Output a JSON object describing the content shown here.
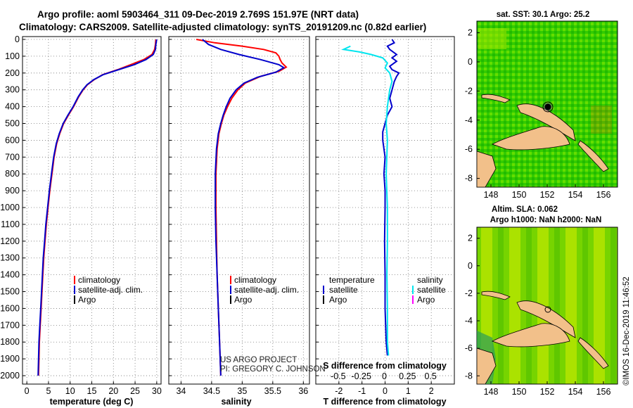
{
  "header": {
    "title_line1": "Argo profile: aoml 5903464_311 09-Dec-2019 2.769S 151.97E (NRT data)",
    "title_line2": "Climatology: CARS2009. Satellite-adjusted climatology: synTS_20191209.nc (0.82d earlier)"
  },
  "colors": {
    "climatology": "#ff0000",
    "satellite": "#0000cc",
    "argo": "#000000",
    "sal_satellite": "#00e5ee",
    "sal_argo": "#ff00ff"
  },
  "depth_ticks": [
    "0",
    "100",
    "200",
    "300",
    "400",
    "500",
    "600",
    "700",
    "800",
    "900",
    "1000",
    "1100",
    "1200",
    "1300",
    "1400",
    "1500",
    "1600",
    "1700",
    "1800",
    "1900",
    "2000"
  ],
  "legend": {
    "climatology": "climatology",
    "satellite_adj": "satellite-adj. clim.",
    "argo": "Argo",
    "temperature": "temperature",
    "salinity": "salinity",
    "satellite": "satellite"
  },
  "credits": {
    "line1": "US ARGO PROJECT",
    "line2": "PI: GREGORY C. JOHNSON"
  },
  "maps": {
    "sst_title": "sat. SST: 30.1 Argo: 25.2",
    "sla_title_line1": "Altim. SLA: 0.062",
    "sla_title_line2": "Argo h1000: NaN h2000: NaN",
    "lon_ticks": [
      "148",
      "150",
      "152",
      "154",
      "156"
    ],
    "lat_ticks": [
      "2",
      "0",
      "-2",
      "-4",
      "-6",
      "-8"
    ],
    "float_position": {
      "lon": 151.97,
      "lat": -2.769
    }
  },
  "imos_stamp": "©IMOS 16-Dec-2019 11:46:52",
  "chart_data": [
    {
      "type": "line",
      "panel": "temperature",
      "xlabel": "temperature (deg C)",
      "ylabel": "depth",
      "xlim": [
        -1,
        31
      ],
      "ylim": [
        2050,
        0
      ],
      "xticks": [
        "0",
        "5",
        "10",
        "15",
        "20",
        "25",
        "30"
      ],
      "series": [
        {
          "name": "climatology",
          "points": [
            [
              29.8,
              0
            ],
            [
              29.7,
              30
            ],
            [
              29.5,
              60
            ],
            [
              28.9,
              90
            ],
            [
              27.0,
              120
            ],
            [
              24.0,
              150
            ],
            [
              21.0,
              180
            ],
            [
              17.5,
              210
            ],
            [
              15.5,
              240
            ],
            [
              14.0,
              270
            ],
            [
              13.0,
              300
            ],
            [
              12.0,
              340
            ],
            [
              10.8,
              400
            ],
            [
              9.6,
              450
            ],
            [
              8.5,
              500
            ],
            [
              7.6,
              560
            ],
            [
              6.9,
              620
            ],
            [
              6.3,
              700
            ],
            [
              5.8,
              800
            ],
            [
              5.3,
              900
            ],
            [
              4.9,
              1000
            ],
            [
              4.5,
              1100
            ],
            [
              4.2,
              1200
            ],
            [
              3.9,
              1300
            ],
            [
              3.7,
              1400
            ],
            [
              3.5,
              1500
            ],
            [
              3.3,
              1600
            ],
            [
              3.1,
              1700
            ],
            [
              2.9,
              1800
            ],
            [
              2.8,
              1900
            ],
            [
              2.7,
              2000
            ]
          ]
        },
        {
          "name": "satellite-adj. clim.",
          "points": [
            [
              30.0,
              0
            ],
            [
              29.8,
              30
            ],
            [
              29.7,
              60
            ],
            [
              29.2,
              90
            ],
            [
              27.5,
              120
            ],
            [
              24.8,
              150
            ],
            [
              21.2,
              180
            ],
            [
              17.6,
              210
            ],
            [
              15.4,
              240
            ],
            [
              13.9,
              270
            ],
            [
              12.9,
              300
            ],
            [
              11.9,
              340
            ],
            [
              10.7,
              400
            ],
            [
              9.5,
              450
            ],
            [
              8.4,
              500
            ],
            [
              7.5,
              560
            ],
            [
              6.8,
              620
            ],
            [
              6.2,
              700
            ],
            [
              5.7,
              800
            ],
            [
              5.2,
              900
            ],
            [
              4.8,
              1000
            ],
            [
              4.4,
              1100
            ],
            [
              4.1,
              1200
            ],
            [
              3.8,
              1300
            ],
            [
              3.6,
              1400
            ],
            [
              3.4,
              1500
            ],
            [
              3.2,
              1600
            ],
            [
              3.0,
              1700
            ],
            [
              2.8,
              1800
            ],
            [
              2.7,
              1900
            ],
            [
              2.6,
              2000
            ]
          ]
        }
      ]
    },
    {
      "type": "line",
      "panel": "salinity",
      "xlabel": "salinity",
      "ylabel": "depth",
      "xlim": [
        33.8,
        36.1
      ],
      "ylim": [
        2050,
        0
      ],
      "xticks": [
        "34",
        "34.5",
        "35",
        "35.5",
        "36"
      ],
      "series": [
        {
          "name": "climatology",
          "points": [
            [
              34.25,
              0
            ],
            [
              34.55,
              20
            ],
            [
              35.0,
              40
            ],
            [
              35.35,
              60
            ],
            [
              35.55,
              80
            ],
            [
              35.6,
              100
            ],
            [
              35.62,
              120
            ],
            [
              35.65,
              140
            ],
            [
              35.72,
              165
            ],
            [
              35.6,
              190
            ],
            [
              35.3,
              220
            ],
            [
              35.05,
              260
            ],
            [
              34.93,
              300
            ],
            [
              34.83,
              350
            ],
            [
              34.76,
              400
            ],
            [
              34.7,
              450
            ],
            [
              34.66,
              500
            ],
            [
              34.62,
              560
            ],
            [
              34.59,
              650
            ],
            [
              34.57,
              800
            ],
            [
              34.57,
              1000
            ],
            [
              34.58,
              1200
            ],
            [
              34.59,
              1400
            ],
            [
              34.61,
              1600
            ],
            [
              34.63,
              1800
            ],
            [
              34.65,
              2000
            ]
          ]
        },
        {
          "name": "satellite-adj. clim.",
          "points": [
            [
              34.35,
              0
            ],
            [
              34.45,
              30
            ],
            [
              34.65,
              60
            ],
            [
              34.95,
              90
            ],
            [
              35.3,
              120
            ],
            [
              35.6,
              150
            ],
            [
              35.68,
              168
            ],
            [
              35.55,
              195
            ],
            [
              35.25,
              225
            ],
            [
              35.03,
              260
            ],
            [
              34.9,
              300
            ],
            [
              34.8,
              350
            ],
            [
              34.74,
              400
            ],
            [
              34.69,
              450
            ],
            [
              34.65,
              500
            ],
            [
              34.61,
              560
            ],
            [
              34.58,
              650
            ],
            [
              34.56,
              800
            ],
            [
              34.56,
              1000
            ],
            [
              34.57,
              1200
            ],
            [
              34.59,
              1400
            ],
            [
              34.61,
              1600
            ],
            [
              34.63,
              1800
            ],
            [
              34.65,
              2000
            ]
          ]
        }
      ]
    },
    {
      "type": "line",
      "panel": "difference",
      "xlabel": "T difference from climatology",
      "xlabel_top": "S difference from climatology",
      "ylabel": "depth",
      "xlim": [
        -3,
        3
      ],
      "ylim": [
        2050,
        0
      ],
      "xticks": [
        "-2",
        "-1",
        "0",
        "1",
        "2"
      ],
      "xticks_salinity": [
        "-0.5",
        "-0.25",
        "0",
        "0.25",
        "0.5"
      ],
      "series": [
        {
          "name": "temperature satellite",
          "points": [
            [
              0.3,
              0
            ],
            [
              0.4,
              20
            ],
            [
              0.1,
              40
            ],
            [
              0.2,
              60
            ],
            [
              0.5,
              90
            ],
            [
              0.3,
              110
            ],
            [
              0.5,
              130
            ],
            [
              0.2,
              160
            ],
            [
              0.3,
              180
            ],
            [
              0.6,
              200
            ],
            [
              0.5,
              220
            ],
            [
              0.4,
              250
            ],
            [
              0.3,
              300
            ],
            [
              0.2,
              350
            ],
            [
              0.3,
              400
            ],
            [
              0.1,
              450
            ],
            [
              0.0,
              500
            ],
            [
              -0.1,
              550
            ],
            [
              -0.1,
              600
            ],
            [
              0.0,
              700
            ],
            [
              -0.05,
              800
            ],
            [
              0.0,
              900
            ],
            [
              0.0,
              1000
            ],
            [
              -0.02,
              1200
            ],
            [
              0.0,
              1400
            ],
            [
              0.0,
              1600
            ],
            [
              0.05,
              1800
            ],
            [
              0.1,
              1880
            ]
          ]
        },
        {
          "name": "salinity satellite",
          "points": [
            [
              -1.5,
              40
            ],
            [
              -1.8,
              60
            ],
            [
              -1.1,
              75
            ],
            [
              -0.6,
              90
            ],
            [
              -0.1,
              110
            ],
            [
              0.1,
              140
            ],
            [
              0.0,
              170
            ],
            [
              0.2,
              200
            ],
            [
              0.3,
              250
            ],
            [
              0.2,
              300
            ],
            [
              0.1,
              400
            ],
            [
              0.05,
              500
            ],
            [
              0.1,
              600
            ],
            [
              0.05,
              800
            ],
            [
              0.1,
              1000
            ],
            [
              0.1,
              1200
            ],
            [
              0.08,
              1400
            ],
            [
              0.1,
              1600
            ],
            [
              0.1,
              1800
            ],
            [
              0.15,
              1880
            ]
          ]
        }
      ]
    }
  ]
}
